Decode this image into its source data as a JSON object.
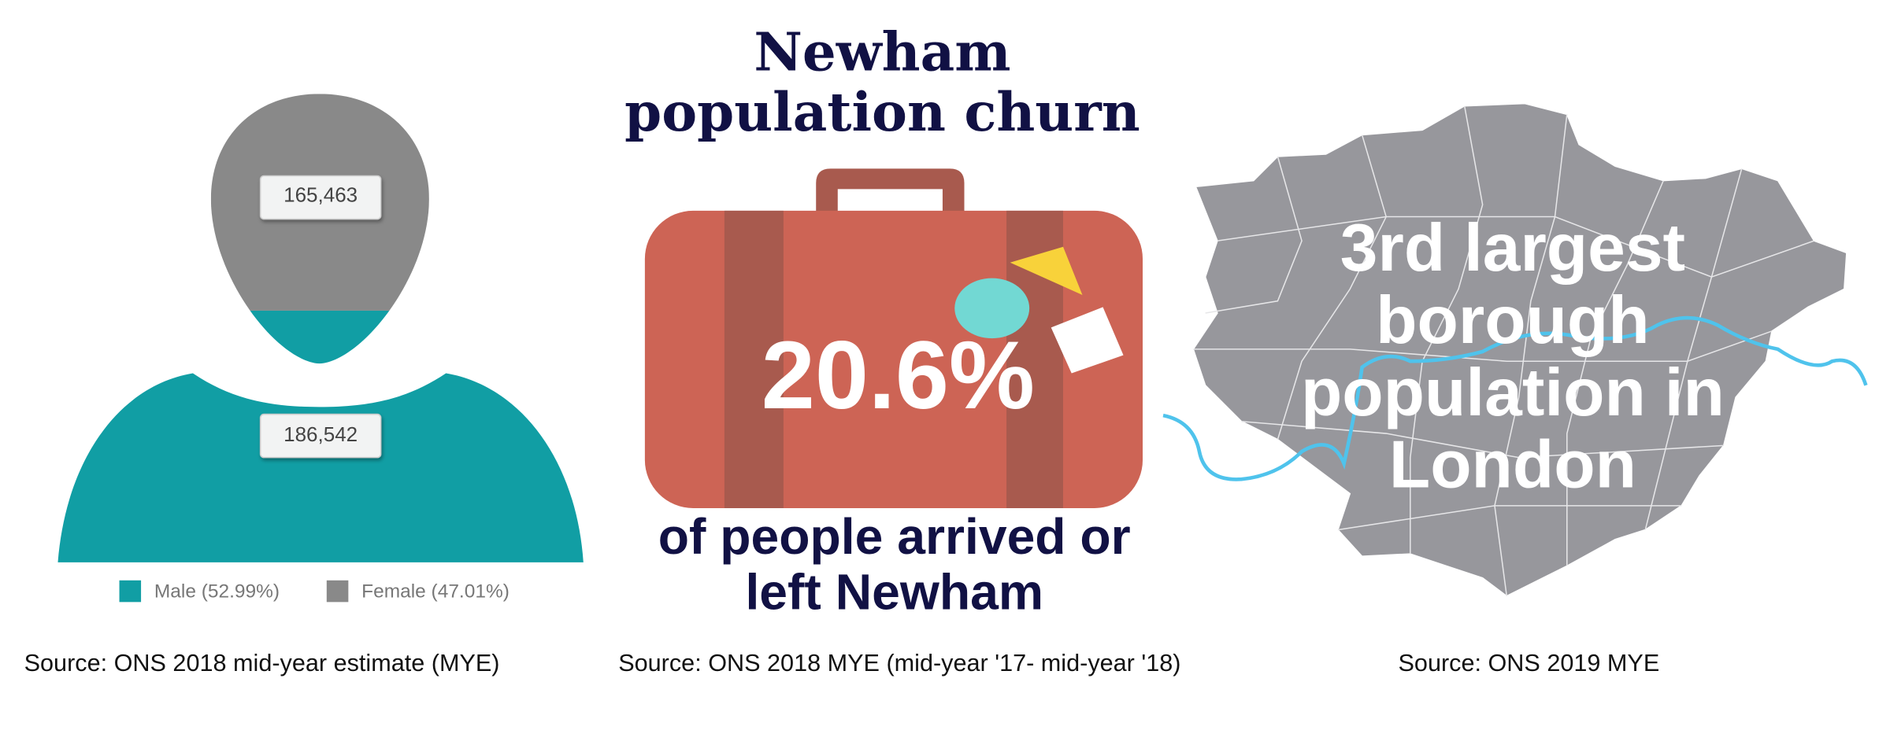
{
  "gender_panel": {
    "female_label": "165,463",
    "male_label": "186,542",
    "legend": {
      "male": "Male (52.99%)",
      "female": "Female (47.01%)"
    },
    "source": "Source: ONS 2018  mid-year estimate (MYE)"
  },
  "churn_panel": {
    "title_line1": "Newham",
    "title_line2": "population churn",
    "figure": "20.6%",
    "caption_line1": "of people arrived or",
    "caption_line2": "left Newham",
    "source": "Source: ONS 2018  MYE  (mid-year '17- mid-year '18)"
  },
  "map_panel": {
    "text_lines": [
      "3rd largest",
      "borough",
      "population in",
      "London"
    ],
    "source": "Source: ONS 2019 MYE"
  }
}
